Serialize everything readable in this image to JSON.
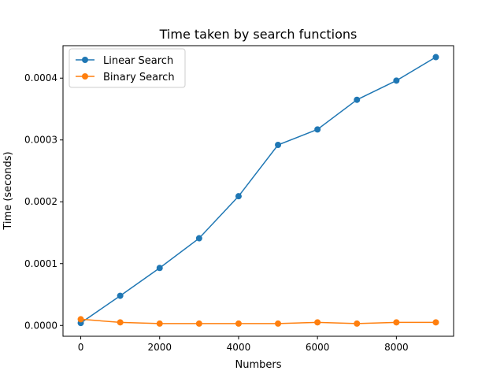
{
  "chart_data": {
    "type": "line",
    "title": "Time taken by search functions",
    "xlabel": "Numbers",
    "ylabel": "Time (seconds)",
    "xlim": [
      -450,
      9450
    ],
    "ylim": [
      -1.75e-05,
      0.0004525
    ],
    "x_ticks": [
      0,
      2000,
      4000,
      6000,
      8000
    ],
    "x_tick_labels": [
      "0",
      "2000",
      "4000",
      "6000",
      "8000"
    ],
    "y_ticks": [
      0.0,
      0.0001,
      0.0002,
      0.0003,
      0.0004
    ],
    "y_tick_labels": [
      "0.0000",
      "0.0001",
      "0.0002",
      "0.0003",
      "0.0004"
    ],
    "grid": false,
    "legend_position": "top-left",
    "x": [
      0,
      1000,
      2000,
      3000,
      4000,
      5000,
      6000,
      7000,
      8000,
      9000
    ],
    "series": [
      {
        "name": "Linear Search",
        "color": "#1f77b4",
        "marker": "circle",
        "values": [
          4e-06,
          4.8e-05,
          9.3e-05,
          0.000141,
          0.000209,
          0.000292,
          0.000317,
          0.000365,
          0.000396,
          0.000434
        ]
      },
      {
        "name": "Binary Search",
        "color": "#ff7f0e",
        "marker": "circle",
        "values": [
          1e-05,
          5e-06,
          3e-06,
          3e-06,
          3e-06,
          3e-06,
          5e-06,
          3e-06,
          5e-06,
          5e-06
        ]
      }
    ]
  }
}
